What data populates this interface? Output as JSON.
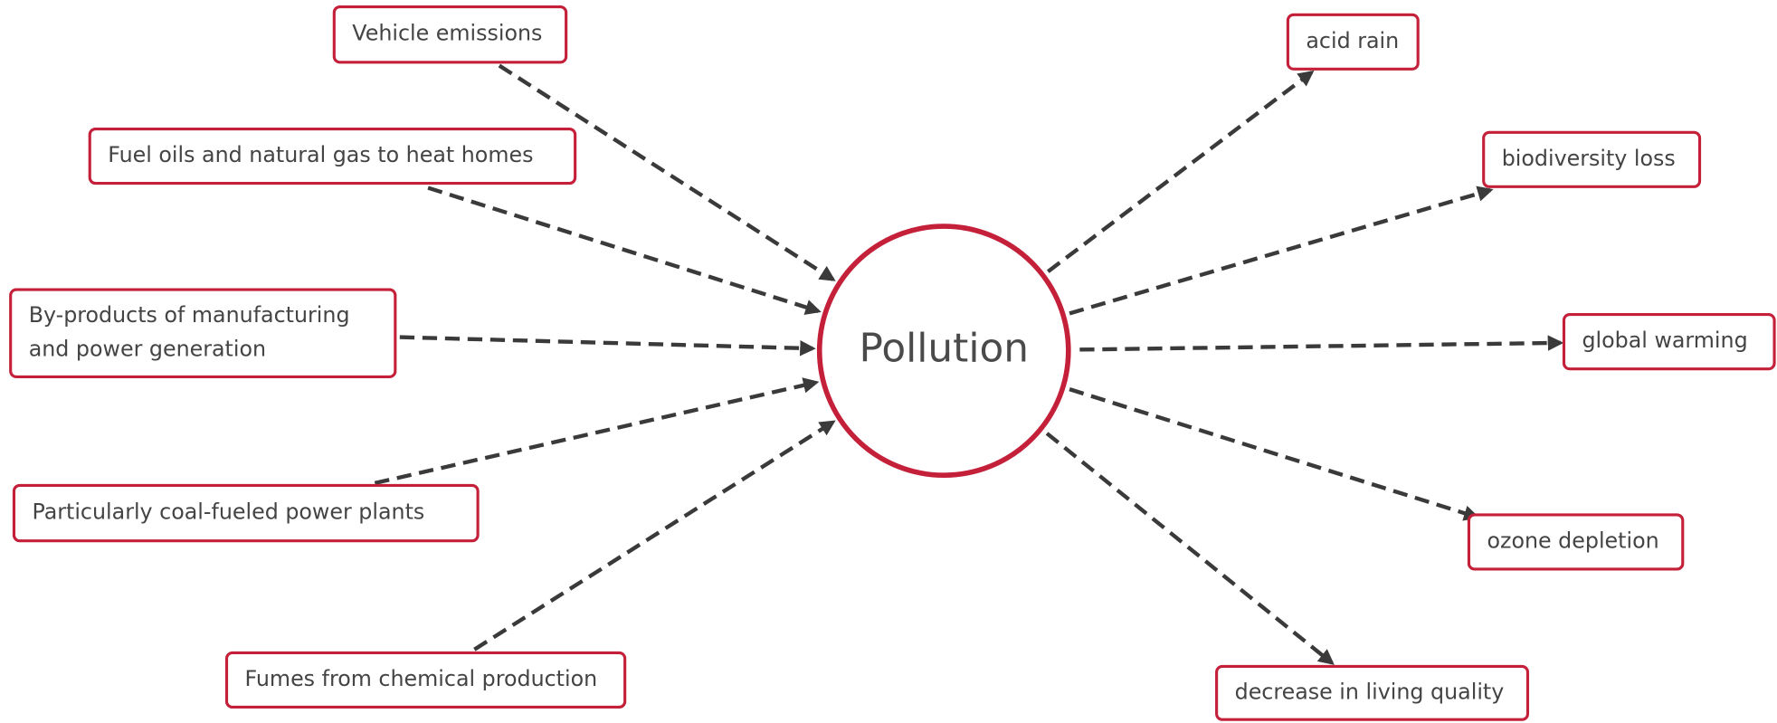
{
  "center": "Pollution",
  "causes": [
    {
      "lines": [
        "Vehicle emissions"
      ]
    },
    {
      "lines": [
        "Fuel oils and natural gas to heat homes"
      ]
    },
    {
      "lines": [
        "By-products of manufacturing",
        "and power generation"
      ]
    },
    {
      "lines": [
        "Particularly coal-fueled power plants"
      ]
    },
    {
      "lines": [
        "Fumes from chemical production"
      ]
    }
  ],
  "effects": [
    {
      "lines": [
        "acid rain"
      ]
    },
    {
      "lines": [
        "biodiversity loss"
      ]
    },
    {
      "lines": [
        "global warming"
      ]
    },
    {
      "lines": [
        "ozone depletion"
      ]
    },
    {
      "lines": [
        "decrease in living quality"
      ]
    }
  ]
}
